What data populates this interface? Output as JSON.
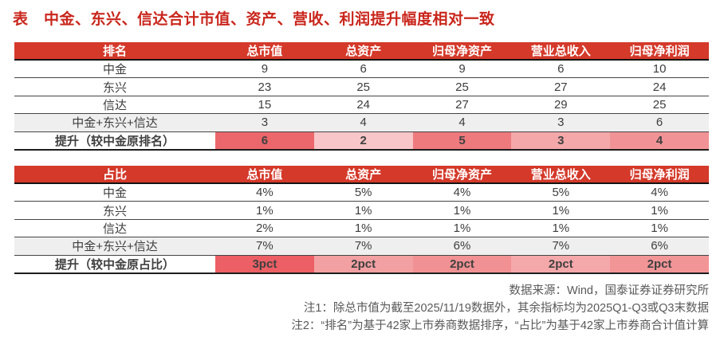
{
  "title": "表　中金、东兴、信达合计市值、资产、营收、利润提升幅度相对一致",
  "colors": {
    "title_red": "#c9261c",
    "header_red": "#d4392a",
    "subtotal_gray": "#efefef",
    "border_dark": "#454545",
    "footer_gray": "#595959"
  },
  "chart_data": [
    {
      "type": "table",
      "title": "排名",
      "columns": [
        "排名",
        "总市值",
        "总资产",
        "归母净资产",
        "营业总收入",
        "归母净利润"
      ],
      "rows": [
        [
          "中金",
          "9",
          "6",
          "9",
          "6",
          "10"
        ],
        [
          "东兴",
          "23",
          "25",
          "25",
          "27",
          "24"
        ],
        [
          "信达",
          "15",
          "24",
          "27",
          "29",
          "25"
        ],
        [
          "中金+东兴+信达",
          "3",
          "4",
          "4",
          "3",
          "6"
        ],
        [
          "提升（较中金原排名）",
          "6",
          "2",
          "5",
          "3",
          "4"
        ]
      ],
      "row_types": [
        "normal",
        "normal",
        "normal",
        "subtotal",
        "highlight"
      ],
      "heat_colors": [
        "#ec676b",
        "#f8c6c8",
        "#ee7a7e",
        "#f4a8aa",
        "#f19396"
      ]
    },
    {
      "type": "table",
      "title": "占比",
      "columns": [
        "占比",
        "总市值",
        "总资产",
        "归母净资产",
        "营业总收入",
        "归母净利润"
      ],
      "rows": [
        [
          "中金",
          "4%",
          "5%",
          "4%",
          "5%",
          "4%"
        ],
        [
          "东兴",
          "1%",
          "1%",
          "1%",
          "1%",
          "1%"
        ],
        [
          "信达",
          "2%",
          "1%",
          "1%",
          "1%",
          "1%"
        ],
        [
          "中金+东兴+信达",
          "7%",
          "7%",
          "6%",
          "7%",
          "6%"
        ],
        [
          "提升（较中金原占比）",
          "3pct",
          "2pct",
          "2pct",
          "2pct",
          "2pct"
        ]
      ],
      "row_types": [
        "normal",
        "normal",
        "normal",
        "subtotal",
        "highlight"
      ],
      "heat_colors": [
        "#ec5f64",
        "#f3a0a2",
        "#f19193",
        "#f5a8aa",
        "#f29597"
      ]
    }
  ],
  "footer": {
    "source": "数据来源：Wind，国泰证券证券研究所",
    "note1": "注1：除总市值为截至2025/11/19数据外，其余指标均为2025Q1-Q3或Q3末数据",
    "note2": "注2：“排名”为基于42家上市券商数据排序，“占比”为基于42家上市券商合计值计算"
  }
}
